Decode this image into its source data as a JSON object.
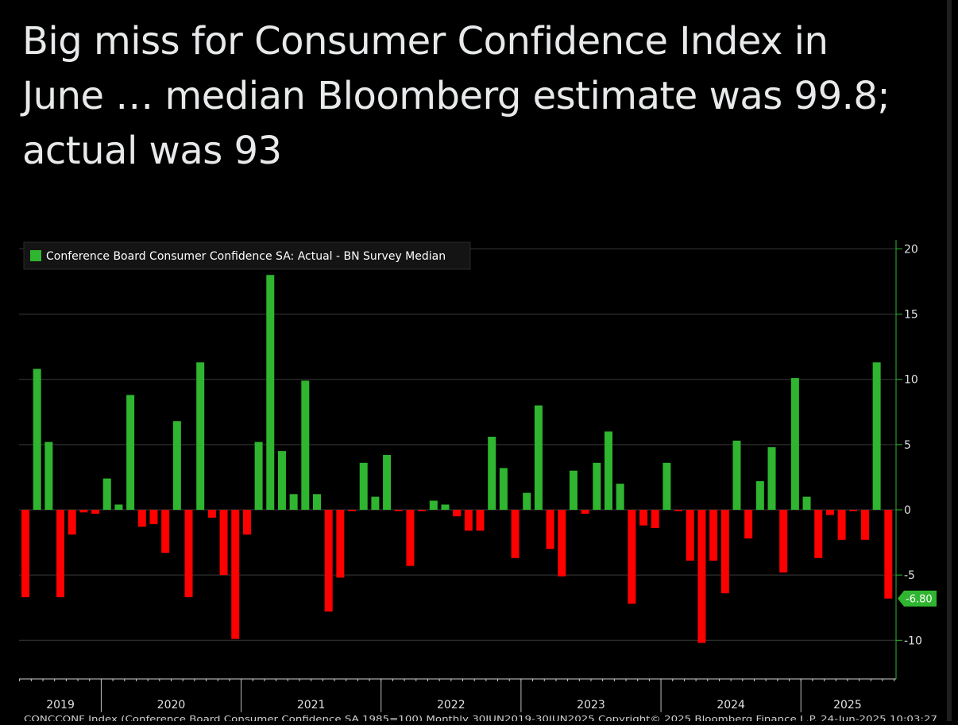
{
  "post": {
    "text": "Big miss for Consumer Confidence Index in June … median Bloomberg estimate was 99.8; actual was 93"
  },
  "colors": {
    "background": "#000000",
    "positive": "#2fb52f",
    "negative": "#ff0000",
    "grid": "#3a3a3a",
    "axis": "#2fb52f",
    "text": "#e0e0e0"
  },
  "chart_data": {
    "type": "bar",
    "title": "",
    "legend": {
      "label": "Conference Board Consumer Confidence SA: Actual - BN Survey Median",
      "placement": "top-left"
    },
    "xlabel": "",
    "ylabel": "",
    "y_axis_side": "right",
    "ylim": [
      -13,
      20
    ],
    "y_ticks": [
      20,
      15,
      10,
      5,
      0,
      -5,
      -10
    ],
    "grid": true,
    "last_value_label": "-6.80",
    "year_labels": [
      "2019",
      "2020",
      "2021",
      "2022",
      "2023",
      "2024",
      "2025"
    ],
    "period": "Monthly 30JUN2019-30JUN2025",
    "values": [
      -6.7,
      10.8,
      5.2,
      -6.7,
      -1.9,
      -0.2,
      -0.3,
      2.4,
      0.4,
      8.8,
      -1.3,
      -1.1,
      -3.3,
      6.8,
      -6.7,
      11.3,
      -0.6,
      -5.0,
      -9.9,
      -1.9,
      5.2,
      18.0,
      4.5,
      1.2,
      9.9,
      1.2,
      -7.8,
      -5.2,
      -0.1,
      3.6,
      1.0,
      4.2,
      -0.1,
      -4.3,
      -0.1,
      0.7,
      0.4,
      -0.5,
      -1.6,
      -1.6,
      5.6,
      3.2,
      -3.7,
      1.3,
      8.0,
      -3.0,
      -5.1,
      3.0,
      -0.3,
      3.6,
      6.0,
      2.0,
      -7.2,
      -1.2,
      -1.4,
      3.6,
      -0.1,
      -3.9,
      -10.2,
      -3.9,
      -6.4,
      5.3,
      -2.2,
      2.2,
      4.8,
      -4.8,
      10.1,
      1.0,
      -3.7,
      -0.4,
      -2.3,
      -0.1,
      -2.3,
      11.3,
      -6.8
    ]
  },
  "footer": {
    "text": "CONCCONF Index (Conference Board Consumer Confidence SA 1985=100)  Monthly 30JUN2019-30JUN2025        Copyright© 2025 Bloomberg Finance L.P.        24-Jun-2025 10:03:27"
  }
}
